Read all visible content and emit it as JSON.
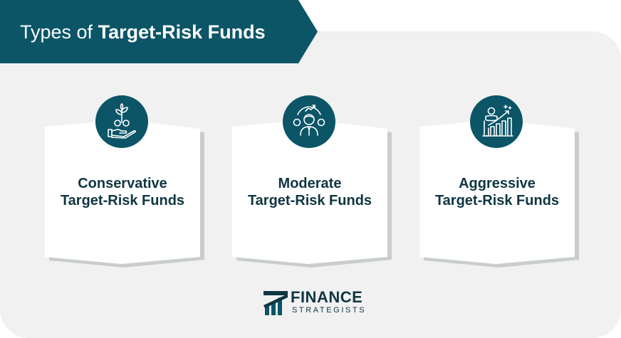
{
  "title": {
    "prefix": "Types of",
    "emphasis": "Target-Risk Funds"
  },
  "cards": [
    {
      "line1": "Conservative",
      "line2": "Target-Risk Funds",
      "icon": "hand-plant-coins-icon"
    },
    {
      "line1": "Moderate",
      "line2": "Target-Risk Funds",
      "icon": "investor-person-icon"
    },
    {
      "line1": "Aggressive",
      "line2": "Target-Risk Funds",
      "icon": "coin-bars-growth-icon"
    }
  ],
  "logo": {
    "word1": "FINANCE",
    "word2": "STRATEGISTS"
  },
  "colors": {
    "primary": "#0b5567",
    "text_dark": "#0f3642",
    "panel": "#f1f1f1",
    "card_shadow": "#c9cdcf"
  }
}
